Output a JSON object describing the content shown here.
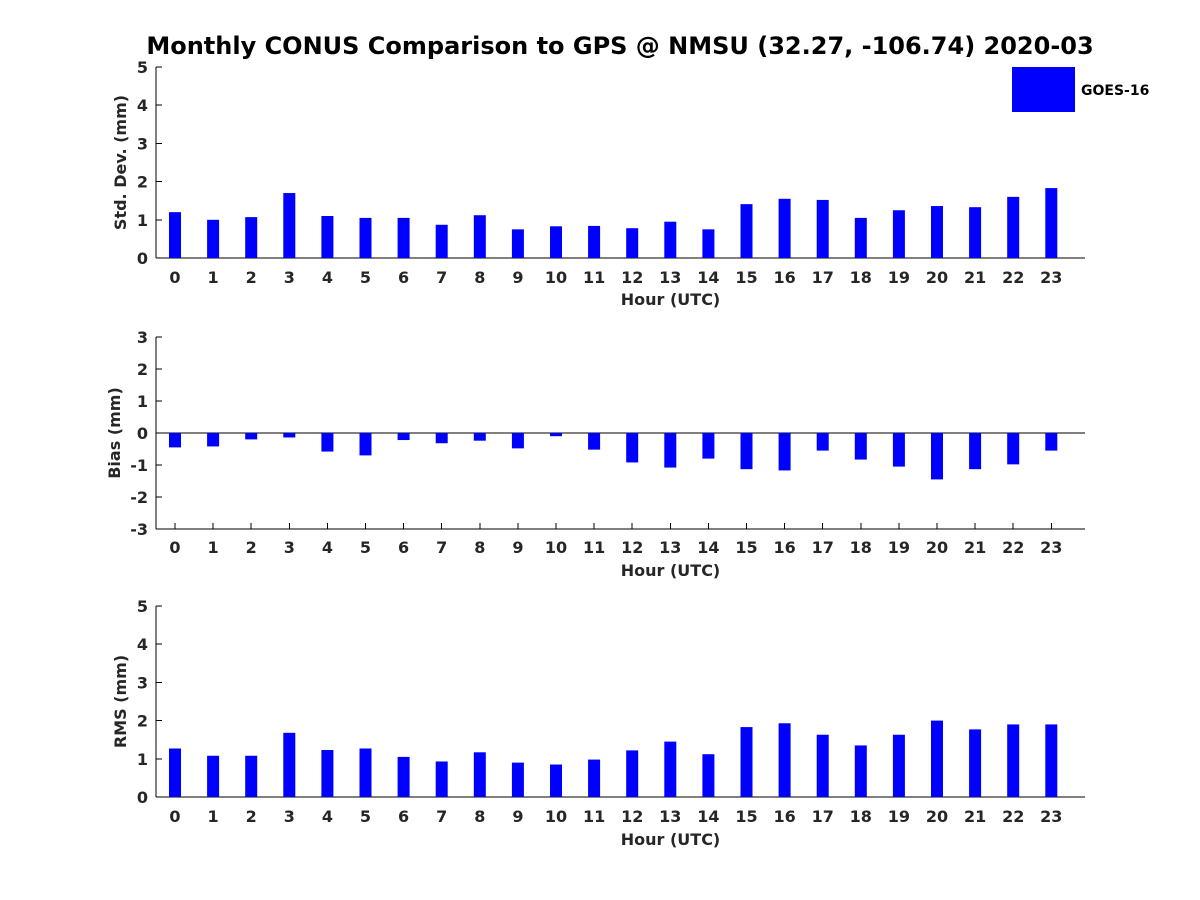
{
  "title": "Monthly CONUS Comparison to GPS @ NMSU (32.27, -106.74) 2020-03",
  "legend": {
    "label": "GOES-16",
    "color": "#0000ff",
    "placement": "top-right"
  },
  "chart_data": [
    {
      "type": "bar",
      "xlabel": "Hour (UTC)",
      "ylabel": "Std. Dev. (mm)",
      "ylim": [
        0,
        5
      ],
      "yticks": [
        0,
        1,
        2,
        3,
        4,
        5
      ],
      "categories": [
        "0",
        "1",
        "2",
        "3",
        "4",
        "5",
        "6",
        "7",
        "8",
        "9",
        "10",
        "11",
        "12",
        "13",
        "14",
        "15",
        "16",
        "17",
        "18",
        "19",
        "20",
        "21",
        "22",
        "23"
      ],
      "series": [
        {
          "name": "GOES-16",
          "color": "#0000ff",
          "values": [
            1.2,
            1.0,
            1.07,
            1.7,
            1.1,
            1.05,
            1.05,
            0.87,
            1.12,
            0.75,
            0.83,
            0.84,
            0.78,
            0.95,
            0.75,
            1.41,
            1.55,
            1.52,
            1.05,
            1.25,
            1.36,
            1.33,
            1.6,
            1.83
          ]
        }
      ],
      "grid": false
    },
    {
      "type": "bar",
      "xlabel": "Hour (UTC)",
      "ylabel": "Bias (mm)",
      "ylim": [
        -3,
        3
      ],
      "yticks": [
        -3,
        -2,
        -1,
        0,
        1,
        2,
        3
      ],
      "categories": [
        "0",
        "1",
        "2",
        "3",
        "4",
        "5",
        "6",
        "7",
        "8",
        "9",
        "10",
        "11",
        "12",
        "13",
        "14",
        "15",
        "16",
        "17",
        "18",
        "19",
        "20",
        "21",
        "22",
        "23"
      ],
      "series": [
        {
          "name": "GOES-16",
          "color": "#0000ff",
          "values": [
            -0.45,
            -0.42,
            -0.2,
            -0.14,
            -0.58,
            -0.7,
            -0.22,
            -0.32,
            -0.24,
            -0.48,
            -0.1,
            -0.52,
            -0.92,
            -1.08,
            -0.8,
            -1.13,
            -1.17,
            -0.55,
            -0.83,
            -1.05,
            -1.45,
            -1.13,
            -0.98,
            -0.55
          ]
        }
      ],
      "grid": false
    },
    {
      "type": "bar",
      "xlabel": "Hour (UTC)",
      "ylabel": "RMS (mm)",
      "ylim": [
        0,
        5
      ],
      "yticks": [
        0,
        1,
        2,
        3,
        4,
        5
      ],
      "categories": [
        "0",
        "1",
        "2",
        "3",
        "4",
        "5",
        "6",
        "7",
        "8",
        "9",
        "10",
        "11",
        "12",
        "13",
        "14",
        "15",
        "16",
        "17",
        "18",
        "19",
        "20",
        "21",
        "22",
        "23"
      ],
      "series": [
        {
          "name": "GOES-16",
          "color": "#0000ff",
          "values": [
            1.27,
            1.08,
            1.08,
            1.68,
            1.23,
            1.27,
            1.05,
            0.93,
            1.17,
            0.9,
            0.85,
            0.98,
            1.22,
            1.45,
            1.12,
            1.83,
            1.93,
            1.63,
            1.35,
            1.63,
            2.0,
            1.77,
            1.9,
            1.9
          ]
        }
      ],
      "grid": false
    }
  ]
}
